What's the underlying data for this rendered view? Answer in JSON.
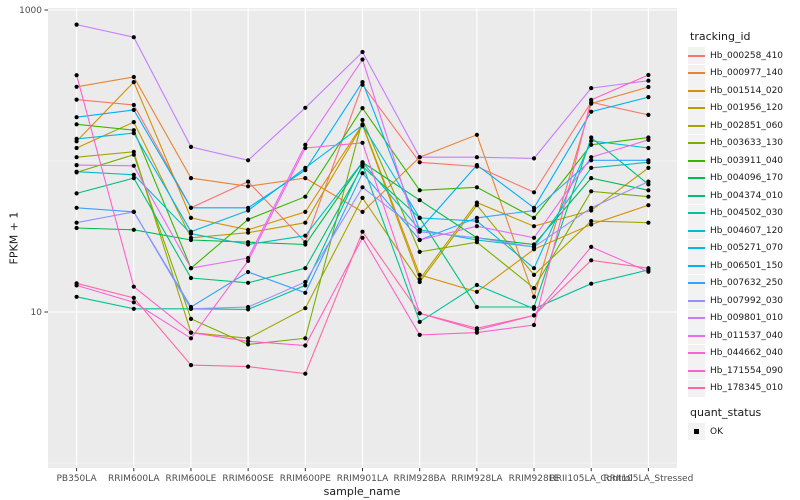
{
  "chart_data": {
    "type": "line",
    "title": "",
    "xlabel": "sample_name",
    "ylabel": "FPKM + 1",
    "y_scale": "log10",
    "ylim": [
      1,
      1100
    ],
    "grid": true,
    "y_tick_labels": [
      {
        "value": 10,
        "label": "10"
      },
      {
        "value": 1000,
        "label": "1000"
      }
    ],
    "y_gridlines_major": [
      10,
      1000
    ],
    "y_gridlines_minor": [
      1,
      100
    ],
    "categories": [
      "PB350LA",
      "RRIM600LA",
      "RRIM600LE",
      "RRIM600SE",
      "RRIM600PE",
      "RRIM901LA",
      "RRIM928BA",
      "RRIM928LA",
      "RRIM928LE",
      "RRII105LA_Control",
      "RRII105LA_Stressed"
    ],
    "legend": {
      "title": "tracking_id",
      "position": "right"
    },
    "legend2": {
      "title": "quant_status",
      "items": [
        {
          "label": "OK",
          "marker": "black-point"
        }
      ]
    },
    "point_color": "#000000",
    "panel_background": "#EBEBEB",
    "gridline_color": "#FFFFFF",
    "axis_text_color": "#4D4D4D",
    "series": [
      {
        "name": "Hb_000258_410",
        "color": "#F8766D",
        "values": [
          255,
          235,
          49,
          73,
          29,
          320,
          98,
          92,
          62,
          245,
          202
        ]
      },
      {
        "name": "Hb_000977_140",
        "color": "#EA8331",
        "values": [
          310,
          360,
          77,
          68,
          77,
          46,
          106,
          149,
          12.6,
          240,
          309
        ]
      },
      {
        "name": "Hb_001514_020",
        "color": "#D89000",
        "values": [
          135,
          333,
          42,
          35,
          46,
          175,
          17.6,
          13.6,
          26,
          38,
          51
        ]
      },
      {
        "name": "Hb_001956_120",
        "color": "#C09B00",
        "values": [
          122,
          181,
          31,
          33.5,
          39,
          173,
          16.5,
          53,
          37,
          47,
          90
        ]
      },
      {
        "name": "Hb_002851_060",
        "color": "#A3A500",
        "values": [
          106,
          115,
          7.3,
          6.7,
          10.6,
          57,
          15.8,
          51,
          17.6,
          40,
          39
        ]
      },
      {
        "name": "Hb_003633_130",
        "color": "#7CAE00",
        "values": [
          84,
          110,
          9,
          6.1,
          6.7,
          187,
          25,
          29,
          14.4,
          63,
          58
        ]
      },
      {
        "name": "Hb_003911_040",
        "color": "#39B600",
        "values": [
          175,
          160,
          19.5,
          41,
          58,
          224,
          64,
          67,
          42,
          128,
          143
        ]
      },
      {
        "name": "Hb_004096_170",
        "color": "#00BB4E",
        "values": [
          36,
          35,
          30,
          29,
          28,
          98,
          55,
          31,
          28,
          77,
          64
        ]
      },
      {
        "name": "Hb_004374_010",
        "color": "#00C079",
        "values": [
          61,
          77,
          16.8,
          15.6,
          19.5,
          92,
          42,
          10.8,
          10.8,
          143,
          70
        ]
      },
      {
        "name": "Hb_004502_030",
        "color": "#00C19C",
        "values": [
          12.6,
          10.5,
          10.5,
          10.4,
          15,
          95,
          8.6,
          15.1,
          10.5,
          15.4,
          19
        ]
      },
      {
        "name": "Hb_004607_120",
        "color": "#00BFC4",
        "values": [
          85,
          81,
          33,
          28,
          32,
          98,
          35,
          30,
          27,
          90,
          98
        ]
      },
      {
        "name": "Hb_005271_070",
        "color": "#00BAE5",
        "values": [
          140,
          153,
          34,
          47,
          90,
          173,
          42,
          40,
          19.5,
          136,
          122
        ]
      },
      {
        "name": "Hb_006501_150",
        "color": "#00B0F6",
        "values": [
          195,
          218,
          49,
          49,
          87,
          333,
          35,
          94,
          49,
          212,
          265
        ]
      },
      {
        "name": "Hb_007632_250",
        "color": "#35A2FF",
        "values": [
          49,
          46,
          10.8,
          18.4,
          13.4,
          83,
          30,
          42,
          47,
          101,
          101
        ]
      },
      {
        "name": "Hb_007992_030",
        "color": "#9590FF",
        "values": [
          39,
          46,
          10.5,
          10.8,
          15.8,
          67,
          34,
          31,
          27,
          49,
          73
        ]
      },
      {
        "name": "Hb_009801_010",
        "color": "#C77CFF",
        "values": [
          800,
          660,
          124,
          101,
          225,
          527,
          106,
          106,
          104,
          304,
          340
        ]
      },
      {
        "name": "Hb_011537_040",
        "color": "#E76BF3",
        "values": [
          94,
          93,
          19.5,
          22.8,
          128,
          470,
          30,
          37,
          31,
          106,
          138
        ]
      },
      {
        "name": "Hb_044662_040",
        "color": "#FA62DB",
        "values": [
          15,
          11.6,
          6.7,
          21.8,
          122,
          132,
          9.8,
          7.6,
          9.5,
          27,
          18.5
        ]
      },
      {
        "name": "Hb_171554_090",
        "color": "#FF61CC",
        "values": [
          370,
          14.7,
          7.3,
          6.4,
          6,
          31,
          7.05,
          7.3,
          8.2,
          254,
          371
        ]
      },
      {
        "name": "Hb_178345_010",
        "color": "#FF67A4",
        "values": [
          15.5,
          12.4,
          4.45,
          4.35,
          3.9,
          34,
          9.8,
          7.8,
          9.5,
          22,
          19.5
        ]
      }
    ]
  }
}
